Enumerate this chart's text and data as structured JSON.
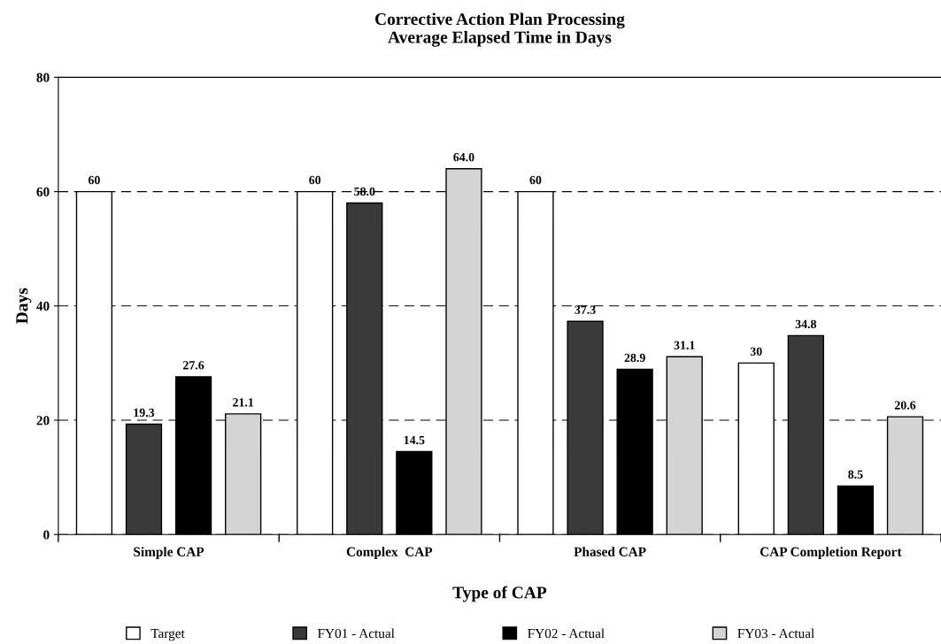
{
  "chart_data": {
    "type": "bar",
    "title": "Corrective Action Plan Processing\nAverage Elapsed Time in Days",
    "xlabel": "Type of CAP",
    "ylabel": "Days",
    "categories": [
      "Simple CAP",
      "Complex  CAP",
      "Phased CAP",
      "CAP Completion Report"
    ],
    "series": [
      {
        "name": "Target",
        "color": "#ffffff",
        "values": [
          60,
          60,
          60,
          30
        ],
        "value_labels": [
          "60",
          "60",
          "60",
          "30"
        ]
      },
      {
        "name": "FY01 - Actual",
        "color": "#3a3a3a",
        "values": [
          19.3,
          58.0,
          37.3,
          34.8
        ],
        "value_labels": [
          "19.3",
          "58.0",
          "37.3",
          "34.8"
        ]
      },
      {
        "name": "FY02 - Actual",
        "color": "#000000",
        "values": [
          27.6,
          14.5,
          28.9,
          8.5
        ],
        "value_labels": [
          "27.6",
          "14.5",
          "28.9",
          "8.5"
        ]
      },
      {
        "name": "FY03 - Actual",
        "color": "#d4d4d4",
        "values": [
          21.1,
          64.0,
          31.1,
          20.6
        ],
        "value_labels": [
          "21.1",
          "64.0",
          "31.1",
          "20.6"
        ]
      }
    ],
    "ylim": [
      0,
      80
    ],
    "yticks": [
      0,
      20,
      40,
      60,
      80
    ],
    "grid": "y",
    "legend": "bottom"
  }
}
